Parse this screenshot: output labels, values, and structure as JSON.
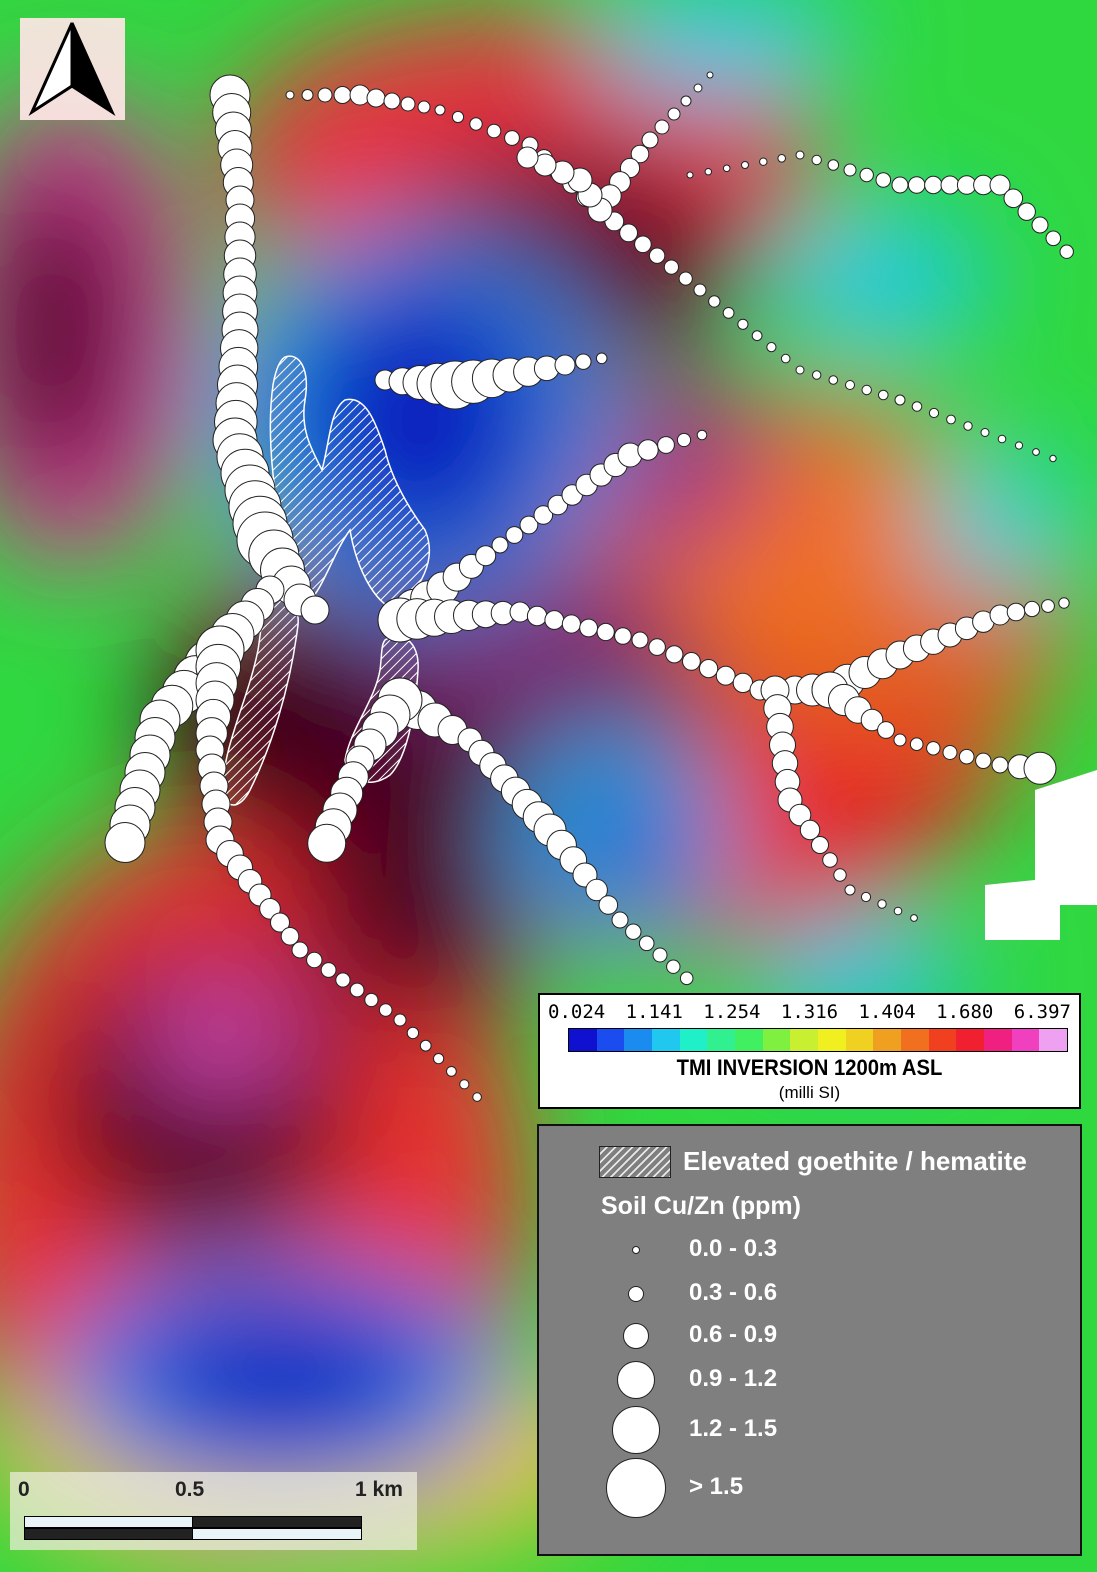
{
  "map": {
    "north_arrow_icon": "north-arrow-icon",
    "colorbar": {
      "ticks": [
        "0.024",
        "1.141",
        "1.254",
        "1.316",
        "1.404",
        "1.680",
        "6.397"
      ],
      "title": "TMI INVERSION 1200m ASL",
      "unit": "(milli SI)",
      "colors": [
        "#1010d0",
        "#1a4cf0",
        "#1a8cf0",
        "#20c8f0",
        "#20f0c8",
        "#30f090",
        "#40f060",
        "#80f040",
        "#c8f030",
        "#f0f020",
        "#f0d020",
        "#f0a020",
        "#f07020",
        "#f04020",
        "#f02030",
        "#f02080",
        "#f040c0",
        "#f0a0f0"
      ]
    },
    "legend": {
      "hatch_label": "Elevated goethite / hematite",
      "soil_title": "Soil Cu/Zn (ppm)",
      "classes": [
        "0.0 - 0.3",
        "0.3 - 0.6",
        "0.6 - 0.9",
        "0.9 - 1.2",
        "1.2 - 1.5",
        "> 1.5"
      ]
    },
    "scalebar": {
      "labels": [
        "0",
        "0.5",
        "1 km"
      ]
    }
  }
}
